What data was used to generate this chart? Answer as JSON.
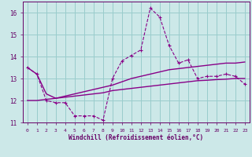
{
  "xlabel": "Windchill (Refroidissement éolien,°C)",
  "background_color": "#cce8e8",
  "grid_color": "#99cccc",
  "line_color": "#880088",
  "x": [
    0,
    1,
    2,
    3,
    4,
    5,
    6,
    7,
    8,
    9,
    10,
    11,
    12,
    13,
    14,
    15,
    16,
    17,
    18,
    19,
    20,
    21,
    22,
    23
  ],
  "y_main": [
    13.5,
    13.2,
    12.0,
    11.9,
    11.9,
    11.3,
    11.3,
    11.3,
    11.1,
    13.0,
    13.8,
    14.05,
    14.3,
    16.2,
    15.8,
    14.5,
    13.7,
    13.85,
    13.0,
    13.1,
    13.1,
    13.2,
    13.1,
    12.75
  ],
  "y_upper": [
    13.5,
    13.2,
    12.3,
    12.1,
    12.2,
    12.3,
    12.4,
    12.5,
    12.6,
    12.7,
    12.85,
    13.0,
    13.1,
    13.2,
    13.3,
    13.4,
    13.45,
    13.5,
    13.55,
    13.6,
    13.65,
    13.7,
    13.7,
    13.75
  ],
  "y_lower": [
    12.0,
    12.0,
    12.05,
    12.1,
    12.15,
    12.2,
    12.25,
    12.3,
    12.35,
    12.45,
    12.5,
    12.55,
    12.6,
    12.65,
    12.7,
    12.75,
    12.8,
    12.85,
    12.9,
    12.92,
    12.95,
    12.97,
    13.0,
    13.0
  ],
  "ylim": [
    11,
    16.5
  ],
  "xlim": [
    -0.5,
    23.5
  ],
  "yticks": [
    11,
    12,
    13,
    14,
    15,
    16
  ],
  "xticks": [
    0,
    1,
    2,
    3,
    4,
    5,
    6,
    7,
    8,
    9,
    10,
    11,
    12,
    13,
    14,
    15,
    16,
    17,
    18,
    19,
    20,
    21,
    22,
    23
  ]
}
